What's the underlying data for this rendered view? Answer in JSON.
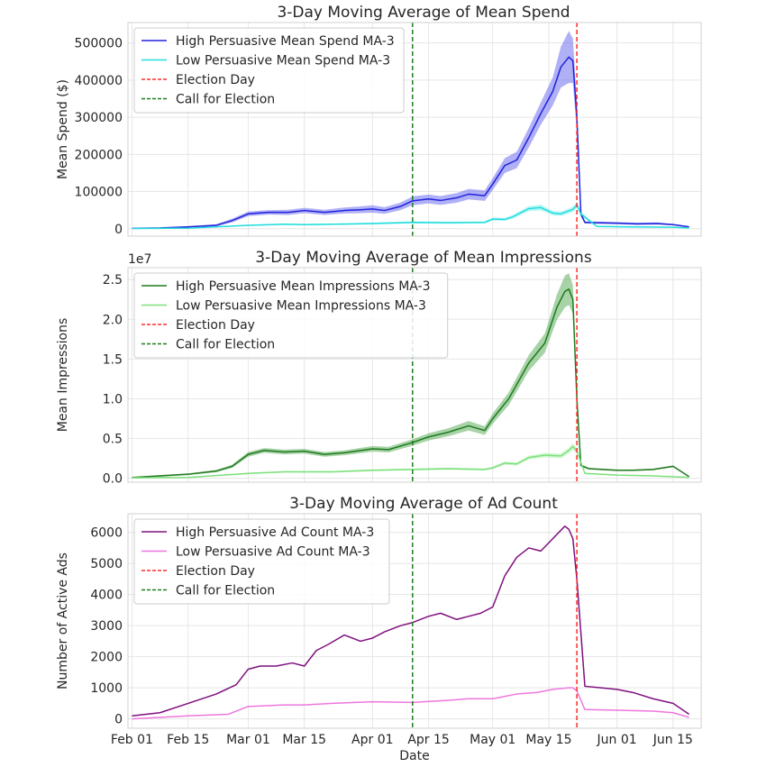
{
  "xaxis": {
    "label": "Date",
    "start": "2024-01-31",
    "end": "2024-06-22",
    "ticks": [
      {
        "date": "2024-02-01",
        "label": "Feb 01"
      },
      {
        "date": "2024-02-15",
        "label": "Feb 15"
      },
      {
        "date": "2024-03-01",
        "label": "Mar 01"
      },
      {
        "date": "2024-03-15",
        "label": "Mar 15"
      },
      {
        "date": "2024-04-01",
        "label": "Apr 01"
      },
      {
        "date": "2024-04-15",
        "label": "Apr 15"
      },
      {
        "date": "2024-05-01",
        "label": "May 01"
      },
      {
        "date": "2024-05-15",
        "label": "May 15"
      },
      {
        "date": "2024-06-01",
        "label": "Jun 01"
      },
      {
        "date": "2024-06-15",
        "label": "Jun 15"
      }
    ]
  },
  "events": {
    "election_day": {
      "date": "2024-05-22",
      "label": "Election Day",
      "color": "#ff2b2b"
    },
    "call_for_election": {
      "date": "2024-04-11",
      "label": "Call for Election",
      "color": "#1a7f1a"
    }
  },
  "chart_data": [
    {
      "type": "line",
      "title": "3-Day Moving Average of Mean Spend",
      "ylabel": "Mean Spend ($)",
      "ylim": [
        -20000,
        555000
      ],
      "yticks": [
        0,
        100000,
        200000,
        300000,
        400000,
        500000
      ],
      "ytick_labels": [
        "0",
        "100000",
        "200000",
        "300000",
        "400000",
        "500000"
      ],
      "sci_label": "",
      "legend_position": "upper-left",
      "series": [
        {
          "name": "High Persuasive Mean Spend MA-3",
          "color": "#2222dd",
          "band_color": "#7070ee",
          "x": [
            "2024-02-01",
            "2024-02-08",
            "2024-02-15",
            "2024-02-22",
            "2024-02-26",
            "2024-03-01",
            "2024-03-06",
            "2024-03-11",
            "2024-03-15",
            "2024-03-20",
            "2024-03-25",
            "2024-03-29",
            "2024-04-01",
            "2024-04-04",
            "2024-04-08",
            "2024-04-11",
            "2024-04-15",
            "2024-04-18",
            "2024-04-22",
            "2024-04-25",
            "2024-04-29",
            "2024-05-01",
            "2024-05-04",
            "2024-05-07",
            "2024-05-10",
            "2024-05-13",
            "2024-05-16",
            "2024-05-18",
            "2024-05-20",
            "2024-05-21",
            "2024-05-22",
            "2024-05-23",
            "2024-05-24",
            "2024-05-27",
            "2024-06-01",
            "2024-06-06",
            "2024-06-11",
            "2024-06-15",
            "2024-06-19"
          ],
          "values": [
            1000,
            2000,
            5000,
            9000,
            22000,
            40000,
            44000,
            44000,
            49000,
            44000,
            49000,
            51000,
            53000,
            49000,
            60000,
            75000,
            80000,
            76000,
            83000,
            93000,
            89000,
            120000,
            170000,
            185000,
            245000,
            310000,
            370000,
            435000,
            462000,
            452000,
            300000,
            40000,
            17000,
            16000,
            15000,
            13000,
            14000,
            11000,
            5000
          ],
          "band_halfwidth": [
            1000,
            1000,
            2000,
            3000,
            5000,
            6000,
            6000,
            7000,
            7000,
            7000,
            8000,
            9000,
            10000,
            9000,
            10000,
            12000,
            12000,
            12000,
            13000,
            14000,
            14000,
            16000,
            20000,
            22000,
            26000,
            30000,
            38000,
            55000,
            70000,
            60000,
            40000,
            8000,
            3000,
            3000,
            3000,
            3000,
            3000,
            2000,
            2000
          ]
        },
        {
          "name": "Low Persuasive Mean Spend MA-3",
          "color": "#22dddd",
          "band_color": "#7feeee",
          "x": [
            "2024-02-01",
            "2024-02-15",
            "2024-03-01",
            "2024-03-10",
            "2024-03-15",
            "2024-03-22",
            "2024-04-01",
            "2024-04-11",
            "2024-04-20",
            "2024-04-29",
            "2024-05-01",
            "2024-05-04",
            "2024-05-06",
            "2024-05-10",
            "2024-05-13",
            "2024-05-16",
            "2024-05-18",
            "2024-05-21",
            "2024-05-22",
            "2024-05-23",
            "2024-05-27",
            "2024-06-05",
            "2024-06-15",
            "2024-06-19"
          ],
          "values": [
            500,
            1500,
            9000,
            12000,
            11000,
            12000,
            14000,
            17000,
            16000,
            17000,
            26000,
            25000,
            32000,
            54000,
            57000,
            42000,
            40000,
            52000,
            64000,
            40000,
            6000,
            5000,
            4000,
            2000
          ],
          "band_halfwidth": [
            500,
            700,
            1500,
            2000,
            2000,
            2000,
            2500,
            3000,
            3000,
            3000,
            4000,
            4000,
            5000,
            7000,
            8000,
            6000,
            6000,
            7000,
            8000,
            6000,
            1500,
            1000,
            1000,
            500
          ]
        }
      ]
    },
    {
      "type": "line",
      "title": "3-Day Moving Average of Mean Impressions",
      "ylabel": "Mean Impressions",
      "ylim": [
        -500000,
        26500000
      ],
      "yticks": [
        0,
        5000000,
        10000000,
        15000000,
        20000000,
        25000000
      ],
      "ytick_labels": [
        "0.0",
        "0.5",
        "1.0",
        "1.5",
        "2.0",
        "2.5"
      ],
      "sci_label": "1e7",
      "legend_position": "upper-left",
      "series": [
        {
          "name": "High Persuasive Mean Impressions MA-3",
          "color": "#1f7a1f",
          "band_color": "#5fae5f",
          "x": [
            "2024-02-01",
            "2024-02-08",
            "2024-02-15",
            "2024-02-22",
            "2024-02-26",
            "2024-03-01",
            "2024-03-05",
            "2024-03-10",
            "2024-03-15",
            "2024-03-20",
            "2024-03-25",
            "2024-04-01",
            "2024-04-05",
            "2024-04-11",
            "2024-04-15",
            "2024-04-20",
            "2024-04-25",
            "2024-04-29",
            "2024-05-01",
            "2024-05-05",
            "2024-05-10",
            "2024-05-14",
            "2024-05-17",
            "2024-05-19",
            "2024-05-20",
            "2024-05-21",
            "2024-05-22",
            "2024-05-23",
            "2024-05-25",
            "2024-06-01",
            "2024-06-05",
            "2024-06-10",
            "2024-06-15",
            "2024-06-19"
          ],
          "values": [
            100000,
            300000,
            500000,
            900000,
            1500000,
            3000000,
            3500000,
            3300000,
            3400000,
            3000000,
            3200000,
            3700000,
            3600000,
            4500000,
            5200000,
            5800000,
            6600000,
            6000000,
            7500000,
            10000000,
            14500000,
            17000000,
            21500000,
            23500000,
            23800000,
            22500000,
            10000000,
            1600000,
            1200000,
            1000000,
            1000000,
            1100000,
            1500000,
            200000
          ],
          "band_halfwidth": [
            50000,
            100000,
            100000,
            150000,
            200000,
            300000,
            300000,
            300000,
            300000,
            300000,
            300000,
            350000,
            350000,
            400000,
            450000,
            500000,
            600000,
            550000,
            650000,
            800000,
            1000000,
            1200000,
            1600000,
            2000000,
            2000000,
            1800000,
            1000000,
            200000,
            100000,
            100000,
            100000,
            100000,
            100000,
            50000
          ]
        },
        {
          "name": "Low Persuasive Mean Impressions MA-3",
          "color": "#7ce07c",
          "band_color": "#b2f2b2",
          "x": [
            "2024-02-01",
            "2024-02-15",
            "2024-03-01",
            "2024-03-10",
            "2024-03-15",
            "2024-03-22",
            "2024-04-01",
            "2024-04-11",
            "2024-04-20",
            "2024-04-29",
            "2024-05-01",
            "2024-05-04",
            "2024-05-07",
            "2024-05-10",
            "2024-05-14",
            "2024-05-18",
            "2024-05-20",
            "2024-05-21",
            "2024-05-22",
            "2024-05-24",
            "2024-06-01",
            "2024-06-10",
            "2024-06-19"
          ],
          "values": [
            50000,
            100000,
            600000,
            800000,
            800000,
            800000,
            1000000,
            1100000,
            1200000,
            1100000,
            1300000,
            1900000,
            1800000,
            2600000,
            2900000,
            2800000,
            3500000,
            4000000,
            3400000,
            600000,
            400000,
            300000,
            100000
          ],
          "band_halfwidth": [
            20000,
            30000,
            80000,
            100000,
            100000,
            100000,
            120000,
            130000,
            140000,
            130000,
            150000,
            200000,
            200000,
            250000,
            300000,
            300000,
            350000,
            400000,
            350000,
            80000,
            50000,
            40000,
            20000
          ]
        }
      ]
    },
    {
      "type": "line",
      "title": "3-Day Moving Average of Ad Count",
      "ylabel": "Number of Active Ads",
      "ylim": [
        -300,
        6600
      ],
      "yticks": [
        0,
        1000,
        2000,
        3000,
        4000,
        5000,
        6000
      ],
      "ytick_labels": [
        "0",
        "1000",
        "2000",
        "3000",
        "4000",
        "5000",
        "6000"
      ],
      "sci_label": "",
      "legend_position": "upper-left",
      "series": [
        {
          "name": "High Persuasive Ad Count MA-3",
          "color": "#7f107f",
          "band_color": "",
          "x": [
            "2024-02-01",
            "2024-02-08",
            "2024-02-15",
            "2024-02-22",
            "2024-02-27",
            "2024-03-01",
            "2024-03-04",
            "2024-03-08",
            "2024-03-12",
            "2024-03-15",
            "2024-03-18",
            "2024-03-21",
            "2024-03-25",
            "2024-03-29",
            "2024-04-01",
            "2024-04-04",
            "2024-04-08",
            "2024-04-11",
            "2024-04-15",
            "2024-04-18",
            "2024-04-22",
            "2024-04-25",
            "2024-04-28",
            "2024-05-01",
            "2024-05-04",
            "2024-05-07",
            "2024-05-10",
            "2024-05-13",
            "2024-05-16",
            "2024-05-19",
            "2024-05-20",
            "2024-05-21",
            "2024-05-22",
            "2024-05-24",
            "2024-05-28",
            "2024-06-01",
            "2024-06-05",
            "2024-06-10",
            "2024-06-15",
            "2024-06-19"
          ],
          "values": [
            100,
            200,
            500,
            800,
            1100,
            1600,
            1700,
            1700,
            1800,
            1700,
            2200,
            2400,
            2700,
            2500,
            2600,
            2800,
            3000,
            3100,
            3300,
            3400,
            3200,
            3300,
            3400,
            3600,
            4600,
            5200,
            5500,
            5400,
            5800,
            6200,
            6100,
            5800,
            4500,
            1050,
            1000,
            950,
            850,
            650,
            500,
            150
          ]
        },
        {
          "name": "Low Persuasive Ad Count MA-3",
          "color": "#ee77dd",
          "band_color": "",
          "x": [
            "2024-02-01",
            "2024-02-15",
            "2024-02-25",
            "2024-03-01",
            "2024-03-10",
            "2024-03-15",
            "2024-03-22",
            "2024-04-01",
            "2024-04-11",
            "2024-04-20",
            "2024-04-25",
            "2024-05-01",
            "2024-05-07",
            "2024-05-12",
            "2024-05-16",
            "2024-05-20",
            "2024-05-21",
            "2024-05-22",
            "2024-05-24",
            "2024-06-01",
            "2024-06-10",
            "2024-06-15",
            "2024-06-19"
          ],
          "values": [
            0,
            100,
            150,
            400,
            450,
            450,
            500,
            550,
            530,
            600,
            650,
            650,
            800,
            850,
            950,
            1000,
            1000,
            900,
            300,
            280,
            250,
            200,
            50
          ]
        }
      ]
    }
  ]
}
